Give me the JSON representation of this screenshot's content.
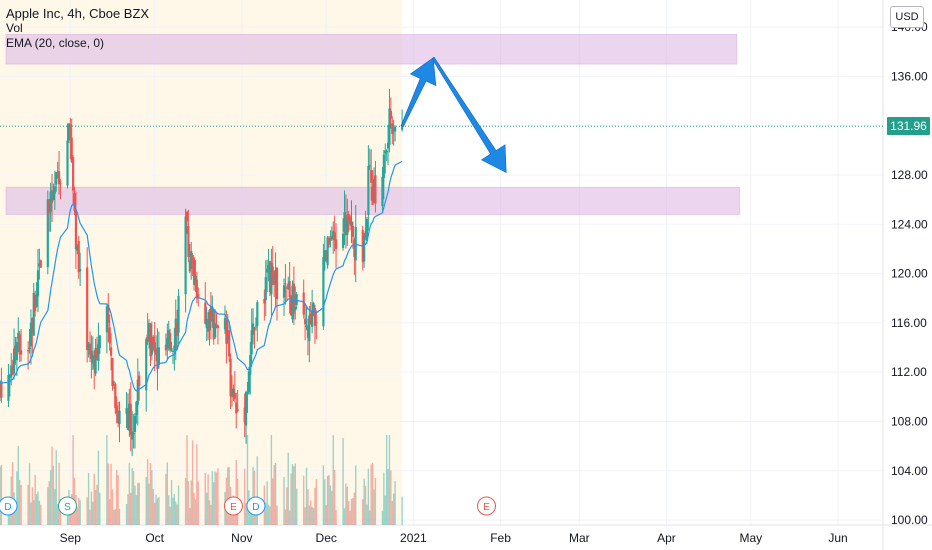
{
  "legend": {
    "title": "Apple Inc, 4h, Cboe BZX",
    "vol": "Vol",
    "ema": "EMA (20, close, 0)"
  },
  "currency": "USD",
  "last_price": "131.96",
  "colors": {
    "up": "#26a69a",
    "down": "#ef5350",
    "ema": "#2196f3",
    "zone": "#e1bee7",
    "arrow": "#1e88e5",
    "highlight_bg": "#fff8e8",
    "price_line": "#22a08c"
  },
  "chart_data": {
    "type": "candlestick",
    "y_ticks": [
      140.0,
      136.0,
      132.0,
      128.0,
      124.0,
      120.0,
      116.0,
      112.0,
      108.0,
      104.0,
      100.0
    ],
    "ylim": [
      99.6,
      142.2
    ],
    "x_tick_labels": [
      "Sep",
      "Oct",
      "Nov",
      "Dec",
      "2021",
      "Feb",
      "Mar",
      "Apr",
      "May",
      "Jun"
    ],
    "xlim": [
      "2020-08-07",
      "2021-06-17"
    ],
    "x_tick_dates": [
      "2020-09-01",
      "2020-10-01",
      "2020-11-01",
      "2020-12-01",
      "2021-01-01",
      "2021-02-01",
      "2021-03-01",
      "2021-04-01",
      "2021-05-01",
      "2021-06-01"
    ],
    "price_path": [
      [
        "2020-08-07",
        110.0
      ],
      [
        "2020-08-12",
        113.5
      ],
      [
        "2020-08-18",
        115.5
      ],
      [
        "2020-08-21",
        121.5
      ],
      [
        "2020-08-25",
        125.5
      ],
      [
        "2020-08-28",
        128.0
      ],
      [
        "2020-09-01",
        131.5
      ],
      [
        "2020-09-03",
        123.0
      ],
      [
        "2020-09-04",
        120.0
      ],
      [
        "2020-09-08",
        113.5
      ],
      [
        "2020-09-10",
        114.0
      ],
      [
        "2020-09-14",
        116.0
      ],
      [
        "2020-09-18",
        108.5
      ],
      [
        "2020-09-21",
        109.5
      ],
      [
        "2020-09-23",
        106.5
      ],
      [
        "2020-09-25",
        111.5
      ],
      [
        "2020-09-29",
        114.5
      ],
      [
        "2020-10-02",
        113.0
      ],
      [
        "2020-10-06",
        114.0
      ],
      [
        "2020-10-09",
        116.5
      ],
      [
        "2020-10-12",
        123.5
      ],
      [
        "2020-10-14",
        121.0
      ],
      [
        "2020-10-19",
        117.0
      ],
      [
        "2020-10-23",
        115.0
      ],
      [
        "2020-10-26",
        115.5
      ],
      [
        "2020-10-28",
        111.5
      ],
      [
        "2020-10-30",
        109.0
      ],
      [
        "2020-11-02",
        109.5
      ],
      [
        "2020-11-05",
        115.5
      ],
      [
        "2020-11-09",
        118.5
      ],
      [
        "2020-11-11",
        119.5
      ],
      [
        "2020-11-13",
        119.0
      ],
      [
        "2020-11-18",
        118.0
      ],
      [
        "2020-11-20",
        117.5
      ],
      [
        "2020-11-24",
        115.0
      ],
      [
        "2020-11-27",
        116.5
      ],
      [
        "2020-11-30",
        120.0
      ],
      [
        "2020-12-02",
        122.5
      ],
      [
        "2020-12-04",
        122.0
      ],
      [
        "2020-12-08",
        124.5
      ],
      [
        "2020-12-11",
        122.5
      ],
      [
        "2020-12-14",
        121.5
      ],
      [
        "2020-12-16",
        127.5
      ],
      [
        "2020-12-18",
        126.5
      ],
      [
        "2020-12-21",
        128.5
      ],
      [
        "2020-12-23",
        131.0
      ],
      [
        "2020-12-24",
        133.0
      ],
      [
        "2020-12-28",
        131.96
      ]
    ],
    "volume_series": {
      "name": "Vol",
      "range": [
        0.0,
        1.0
      ]
    },
    "ema_series": {
      "name": "EMA (20, close, 0)",
      "period": 20
    },
    "zones": [
      {
        "from": 137.0,
        "to": 139.4,
        "start": "2020-08-07",
        "end": "2021-04-26"
      },
      {
        "from": 124.8,
        "to": 127.0,
        "start": "2020-08-07",
        "end": "2021-04-27"
      }
    ],
    "projection": [
      [
        "2020-12-28",
        131.96
      ],
      [
        "2021-01-08",
        137.5
      ],
      [
        "2021-02-03",
        128.2
      ]
    ],
    "last_price": 131.96,
    "highlight_range": [
      "2020-08-07",
      "2020-12-28"
    ],
    "event_markers": [
      {
        "date": "2020-08-07",
        "label": "D",
        "kind": "dividend"
      },
      {
        "date": "2020-08-31",
        "label": "S",
        "kind": "split"
      },
      {
        "date": "2020-10-29",
        "label": "E",
        "kind": "earnings"
      },
      {
        "date": "2020-11-06",
        "label": "D",
        "kind": "dividend"
      },
      {
        "date": "2021-01-27",
        "label": "E",
        "kind": "earnings"
      }
    ]
  }
}
